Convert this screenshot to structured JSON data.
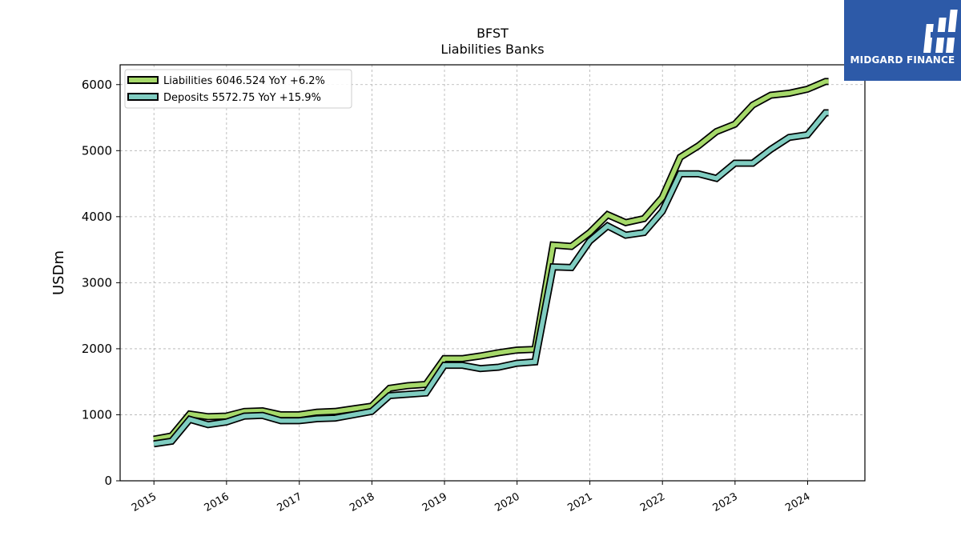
{
  "brand": {
    "name": "MIDGARD FINANCE",
    "bg_color": "#2d5aa8"
  },
  "chart_data": {
    "type": "line",
    "title": "BFST",
    "subtitle": "Liabilities Banks",
    "ylabel": "USDm",
    "xlabel": "",
    "ylim": [
      0,
      6300
    ],
    "yticks": [
      0,
      1000,
      2000,
      3000,
      4000,
      5000,
      6000
    ],
    "xticks": [
      "2015",
      "2016",
      "2017",
      "2018",
      "2019",
      "2020",
      "2021",
      "2022",
      "2023",
      "2024"
    ],
    "xlim": [
      "2014-07-15",
      "2024-10-15"
    ],
    "grid": true,
    "legend_position": "upper-left",
    "x": [
      "2014-12-31",
      "2015-03-31",
      "2015-06-30",
      "2015-09-30",
      "2015-12-31",
      "2016-03-31",
      "2016-06-30",
      "2016-09-30",
      "2016-12-31",
      "2017-03-31",
      "2017-06-30",
      "2017-09-30",
      "2017-12-31",
      "2018-03-31",
      "2018-06-30",
      "2018-09-30",
      "2018-12-31",
      "2019-03-31",
      "2019-06-30",
      "2019-09-30",
      "2019-12-31",
      "2020-03-31",
      "2020-06-30",
      "2020-09-30",
      "2020-12-31",
      "2021-03-31",
      "2021-06-30",
      "2021-09-30",
      "2021-12-31",
      "2022-03-31",
      "2022-06-30",
      "2022-09-30",
      "2022-12-31",
      "2023-03-31",
      "2023-06-30",
      "2023-09-30",
      "2023-12-31",
      "2024-03-31",
      "2024-04-15"
    ],
    "series": [
      {
        "name": "Liabilities",
        "legend_label": "Liabilities  6046.524 YoY +6.2%",
        "color": "#a6d96a",
        "values": [
          630,
          680,
          1010,
          970,
          980,
          1050,
          1060,
          1000,
          1000,
          1040,
          1050,
          1090,
          1130,
          1400,
          1440,
          1460,
          1850,
          1850,
          1890,
          1940,
          1980,
          1990,
          3570,
          3550,
          3760,
          4030,
          3910,
          3970,
          4290,
          4900,
          5070,
          5290,
          5400,
          5690,
          5840,
          5870,
          5930,
          6046.524,
          6046.524
        ]
      },
      {
        "name": "Deposits",
        "legend_label": "Deposits  5572.75 YoY +15.9%",
        "color": "#80cdc1",
        "values": [
          560,
          600,
          930,
          850,
          890,
          980,
          990,
          910,
          910,
          940,
          950,
          1000,
          1050,
          1290,
          1310,
          1330,
          1750,
          1750,
          1700,
          1720,
          1780,
          1800,
          3240,
          3230,
          3630,
          3860,
          3720,
          3760,
          4080,
          4650,
          4650,
          4580,
          4810,
          4810,
          5020,
          5200,
          5240,
          5572.75,
          5572.75
        ]
      }
    ]
  }
}
